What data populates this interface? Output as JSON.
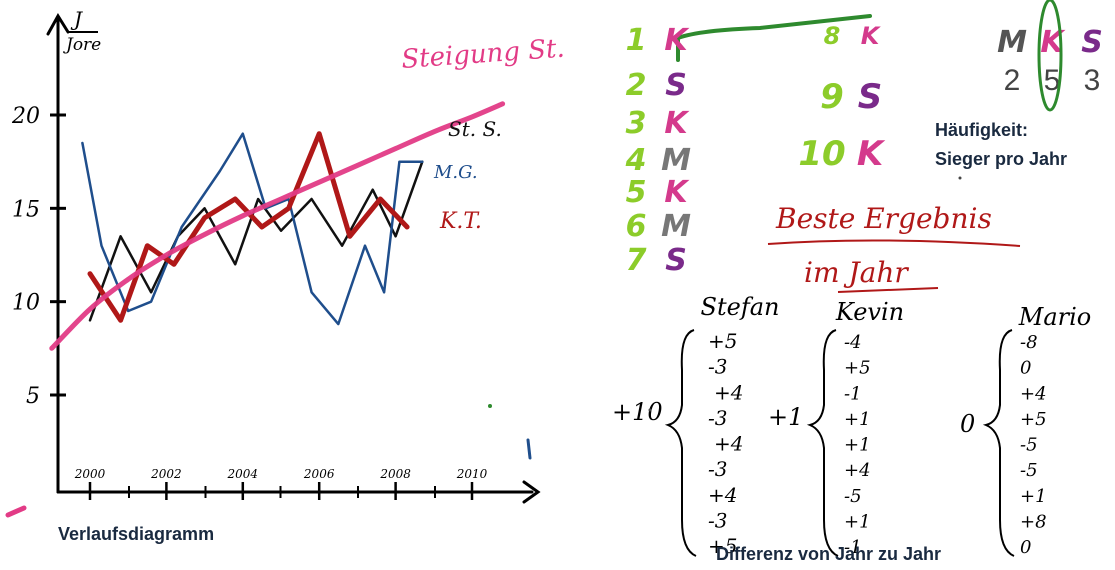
{
  "chart_data": {
    "type": "line",
    "title": "",
    "xlabel": "",
    "ylabel": "J / Jore",
    "x_ticks": [
      "2000",
      "2002",
      "2004",
      "2006",
      "2008",
      "2010"
    ],
    "y_ticks": [
      "5",
      "10",
      "15",
      "20"
    ],
    "ylim": [
      0,
      23
    ],
    "grid": false,
    "series": [
      {
        "name": "St. S.",
        "color": "#111111",
        "x": [
          2000.0,
          2000.8,
          2001.6,
          2002.3,
          2003.0,
          2003.8,
          2004.4,
          2005.0,
          2005.8,
          2006.6,
          2007.4,
          2008.0,
          2008.7
        ],
        "y": [
          9.0,
          13.5,
          10.5,
          13.5,
          15.0,
          12.0,
          15.5,
          13.8,
          15.5,
          13.0,
          16.0,
          13.5,
          17.5
        ]
      },
      {
        "name": "M.G.",
        "color": "#1f4e8c",
        "x": [
          1999.8,
          2000.3,
          2001.0,
          2001.6,
          2002.4,
          2003.4,
          2004.0,
          2004.6,
          2005.2,
          2005.8,
          2006.5,
          2007.2,
          2007.7,
          2008.1,
          2008.7
        ],
        "y": [
          18.5,
          13.0,
          9.5,
          10.0,
          14.0,
          17.0,
          19.0,
          15.0,
          15.5,
          10.5,
          8.8,
          13.0,
          10.5,
          17.5,
          17.5
        ]
      },
      {
        "name": "K.T.",
        "color": "#b01818",
        "x": [
          2000.0,
          2000.8,
          2001.5,
          2002.2,
          2003.0,
          2003.8,
          2004.5,
          2005.2,
          2006.0,
          2006.8,
          2007.6,
          2008.3
        ],
        "y": [
          11.5,
          9.0,
          13.0,
          12.0,
          14.5,
          15.5,
          14.0,
          15.0,
          19.0,
          13.5,
          15.5,
          14.0
        ]
      },
      {
        "name": "Steigung St. S.",
        "color": "#e23b86",
        "x": [
          1999.0,
          2000.0,
          2001.0,
          2002.0,
          2003.0,
          2004.0,
          2005.0,
          2006.0,
          2007.0,
          2008.0,
          2009.0,
          2010.0,
          2010.8
        ],
        "y": [
          7.5,
          9.6,
          11.2,
          12.5,
          13.6,
          14.6,
          15.5,
          16.4,
          17.3,
          18.2,
          19.1,
          19.9,
          20.6
        ]
      }
    ],
    "series_labels": [
      {
        "text": "St. S.",
        "color": "#111111"
      },
      {
        "text": "M.G.",
        "color": "#1f4e8c"
      },
      {
        "text": "K.T.",
        "color": "#b01818"
      },
      {
        "text": "Steigung St.",
        "color": "#e23b86"
      }
    ]
  },
  "caption_left": "Verlaufsdiagramm",
  "winners": {
    "rows": [
      {
        "num": "1",
        "letter": "K"
      },
      {
        "num": "2",
        "letter": "S"
      },
      {
        "num": "3",
        "letter": "K"
      },
      {
        "num": "4",
        "letter": "M"
      },
      {
        "num": "5",
        "letter": "K"
      },
      {
        "num": "6",
        "letter": "M"
      },
      {
        "num": "7",
        "letter": "S"
      },
      {
        "num": "8",
        "letter": "K"
      },
      {
        "num": "9",
        "letter": "S"
      },
      {
        "num": "10",
        "letter": "K"
      }
    ],
    "colors": {
      "num": "#8ccc2a",
      "K": "#d43a8c",
      "S": "#7a2a8a",
      "M": "#777777"
    }
  },
  "frequency": {
    "headers": [
      "M",
      "K",
      "S"
    ],
    "values": [
      "2",
      "5",
      "3"
    ],
    "caption_line1": "Häufigkeit:",
    "caption_line2": "Sieger pro Jahr"
  },
  "best_result": {
    "line1": "Beste Ergebnis",
    "line2": "im Jahr",
    "color": "#b01818"
  },
  "differences": {
    "caption": "Differenz von Jahr zu Jahr",
    "columns": [
      {
        "name": "Stefan",
        "total": "+10",
        "values": [
          "+5",
          "-3",
          "+4",
          "-3",
          "+4",
          "-3",
          "+4",
          "-3",
          "+5"
        ]
      },
      {
        "name": "Kevin",
        "total": "+1",
        "values": [
          "-4",
          "+5",
          "-1",
          "+1",
          "+1",
          "+4",
          "-5",
          "+1",
          "-1"
        ]
      },
      {
        "name": "Mario",
        "total": "0",
        "values": [
          "-8",
          "0",
          "+4",
          "+5",
          "-5",
          "-5",
          "+1",
          "+8",
          "0"
        ]
      }
    ]
  }
}
